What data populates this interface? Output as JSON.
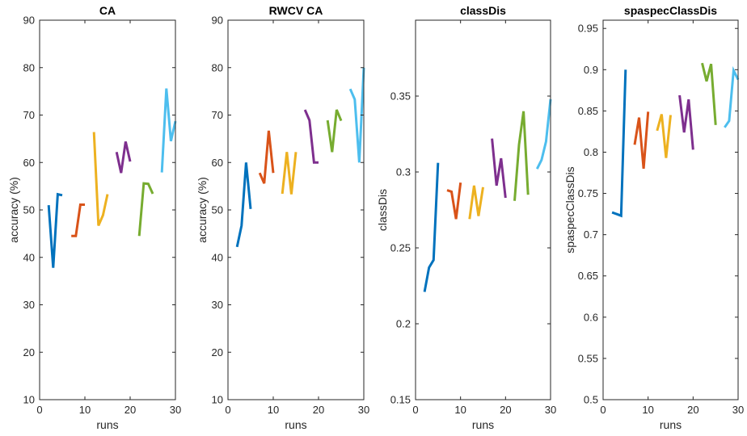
{
  "chart_data": [
    {
      "type": "line",
      "title": "CA",
      "xlabel": "runs",
      "ylabel": "accuracy (%)",
      "xlim": [
        0,
        30
      ],
      "ylim": [
        10,
        90
      ],
      "xticks": [
        "0",
        "10",
        "20",
        "30"
      ],
      "yticks": [
        "10",
        "20",
        "30",
        "40",
        "50",
        "60",
        "70",
        "80",
        "90"
      ],
      "grid": false,
      "series": [
        {
          "color": "#0072BD",
          "x": [
            2,
            3,
            4,
            5
          ],
          "y": [
            51,
            37.8,
            53.3,
            53.1
          ]
        },
        {
          "color": "#D95319",
          "x": [
            7,
            8,
            9,
            10
          ],
          "y": [
            44.5,
            44.5,
            51.1,
            51.1
          ]
        },
        {
          "color": "#EDB120",
          "x": [
            12,
            13,
            14,
            15
          ],
          "y": [
            66.4,
            46.7,
            48.9,
            53.3
          ]
        },
        {
          "color": "#7E2F8E",
          "x": [
            17,
            18,
            19,
            20
          ],
          "y": [
            62.2,
            57.8,
            64.4,
            60.2
          ]
        },
        {
          "color": "#77AC30",
          "x": [
            22,
            23,
            24,
            25
          ],
          "y": [
            44.5,
            55.6,
            55.5,
            53.4
          ]
        },
        {
          "color": "#4DBEEE",
          "x": [
            27,
            28,
            29,
            30
          ],
          "y": [
            57.9,
            75.6,
            64.5,
            68.7
          ]
        }
      ]
    },
    {
      "type": "line",
      "title": "RWCV CA",
      "xlabel": "runs",
      "ylabel": "accuracy (%)",
      "xlim": [
        0,
        30
      ],
      "ylim": [
        10,
        90
      ],
      "xticks": [
        "0",
        "10",
        "20",
        "30"
      ],
      "yticks": [
        "10",
        "20",
        "30",
        "40",
        "50",
        "60",
        "70",
        "80",
        "90"
      ],
      "grid": false,
      "series": [
        {
          "color": "#0072BD",
          "x": [
            2,
            3,
            4,
            5
          ],
          "y": [
            42.2,
            46.7,
            60,
            50.2
          ]
        },
        {
          "color": "#D95319",
          "x": [
            7,
            8,
            9,
            10
          ],
          "y": [
            57.8,
            55.6,
            66.7,
            57.8
          ]
        },
        {
          "color": "#EDB120",
          "x": [
            12,
            13,
            14,
            15
          ],
          "y": [
            53.4,
            62.2,
            53.3,
            62.2
          ]
        },
        {
          "color": "#7E2F8E",
          "x": [
            17,
            18,
            19,
            20
          ],
          "y": [
            71.1,
            68.9,
            60,
            60
          ]
        },
        {
          "color": "#77AC30",
          "x": [
            22,
            23,
            24,
            25
          ],
          "y": [
            68.9,
            62.2,
            71.1,
            68.8
          ]
        },
        {
          "color": "#4DBEEE",
          "x": [
            27,
            28,
            29,
            30
          ],
          "y": [
            75.5,
            73.3,
            60,
            80
          ]
        }
      ]
    },
    {
      "type": "line",
      "title": "classDis",
      "xlabel": "runs",
      "ylabel": "classDis",
      "xlim": [
        0,
        30
      ],
      "ylim": [
        0.15,
        0.4
      ],
      "xticks": [
        "0",
        "10",
        "20",
        "30"
      ],
      "yticks": [
        "0.15",
        "0.2",
        "0.25",
        "0.3",
        "0.35"
      ],
      "grid": false,
      "series": [
        {
          "color": "#0072BD",
          "x": [
            2,
            3,
            4,
            5
          ],
          "y": [
            0.221,
            0.237,
            0.242,
            0.306
          ]
        },
        {
          "color": "#D95319",
          "x": [
            7,
            8,
            9,
            10
          ],
          "y": [
            0.288,
            0.287,
            0.269,
            0.293
          ]
        },
        {
          "color": "#EDB120",
          "x": [
            12,
            13,
            14,
            15
          ],
          "y": [
            0.269,
            0.291,
            0.271,
            0.29
          ]
        },
        {
          "color": "#7E2F8E",
          "x": [
            17,
            18,
            19,
            20
          ],
          "y": [
            0.322,
            0.291,
            0.309,
            0.283
          ]
        },
        {
          "color": "#77AC30",
          "x": [
            22,
            23,
            24,
            25
          ],
          "y": [
            0.281,
            0.318,
            0.34,
            0.285
          ]
        },
        {
          "color": "#4DBEEE",
          "x": [
            27,
            28,
            29,
            30
          ],
          "y": [
            0.302,
            0.308,
            0.32,
            0.348
          ]
        }
      ]
    },
    {
      "type": "line",
      "title": "spaspecClassDis",
      "xlabel": "runs",
      "ylabel": "spaspecClassDis",
      "xlim": [
        0,
        30
      ],
      "ylim": [
        0.5,
        0.96
      ],
      "xticks": [
        "0",
        "10",
        "20",
        "30"
      ],
      "yticks": [
        "0.5",
        "0.55",
        "0.6",
        "0.65",
        "0.7",
        "0.75",
        "0.8",
        "0.85",
        "0.9",
        "0.95"
      ],
      "grid": false,
      "series": [
        {
          "color": "#0072BD",
          "x": [
            2,
            3,
            4,
            5
          ],
          "y": [
            0.727,
            0.725,
            0.723,
            0.9
          ]
        },
        {
          "color": "#D95319",
          "x": [
            7,
            8,
            9,
            10
          ],
          "y": [
            0.809,
            0.842,
            0.78,
            0.849
          ]
        },
        {
          "color": "#EDB120",
          "x": [
            12,
            13,
            14,
            15
          ],
          "y": [
            0.826,
            0.846,
            0.793,
            0.845
          ]
        },
        {
          "color": "#7E2F8E",
          "x": [
            17,
            18,
            19,
            20
          ],
          "y": [
            0.869,
            0.824,
            0.864,
            0.803
          ]
        },
        {
          "color": "#77AC30",
          "x": [
            22,
            23,
            24,
            25
          ],
          "y": [
            0.908,
            0.886,
            0.907,
            0.833
          ]
        },
        {
          "color": "#4DBEEE",
          "x": [
            27,
            28,
            29,
            30
          ],
          "y": [
            0.83,
            0.838,
            0.899,
            0.888
          ]
        }
      ]
    }
  ]
}
